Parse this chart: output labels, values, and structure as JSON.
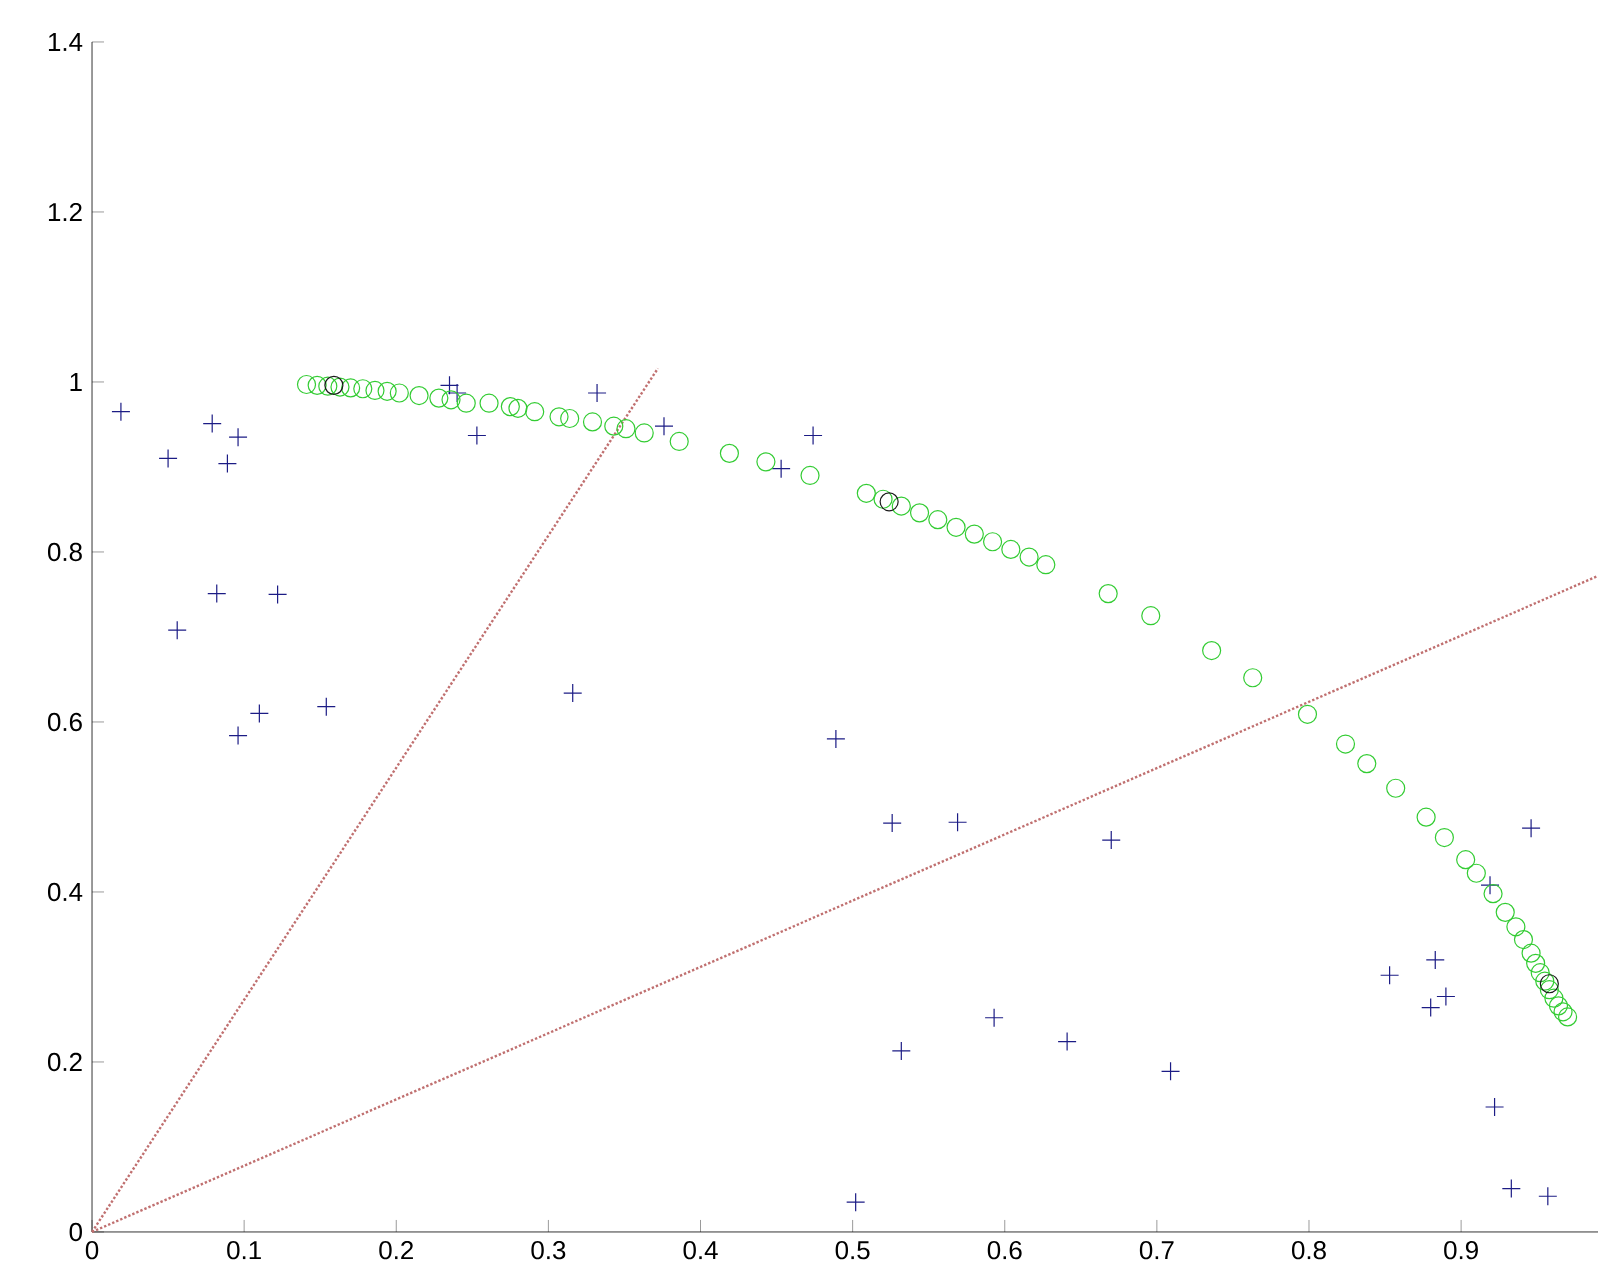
{
  "chart_data": {
    "type": "scatter",
    "xlim": [
      0,
      0.99
    ],
    "ylim": [
      0,
      1.4
    ],
    "xticks": [
      0,
      0.1,
      0.2,
      0.3,
      0.4,
      0.5,
      0.6,
      0.7,
      0.8,
      0.9
    ],
    "yticks": [
      0,
      0.2,
      0.4,
      0.6,
      0.8,
      1,
      1.2,
      1.4
    ],
    "series": [
      {
        "marker": "cross",
        "color": "#1c1c85",
        "x": [
          0.019,
          0.05,
          0.079,
          0.096,
          0.089,
          0.056,
          0.082,
          0.122,
          0.11,
          0.096,
          0.154,
          0.235,
          0.24,
          0.253,
          0.332,
          0.316,
          0.376,
          0.453,
          0.474,
          0.489,
          0.526,
          0.569,
          0.67,
          0.532,
          0.593,
          0.641,
          0.709,
          0.502,
          0.946,
          0.919,
          0.853,
          0.883,
          0.89,
          0.88,
          0.922,
          0.933,
          0.957
        ],
        "values": [
          0.965,
          0.91,
          0.951,
          0.935,
          0.904,
          0.708,
          0.751,
          0.75,
          0.61,
          0.584,
          0.618,
          0.996,
          0.987,
          0.937,
          0.987,
          0.634,
          0.948,
          0.898,
          0.937,
          0.58,
          0.481,
          0.482,
          0.461,
          0.213,
          0.252,
          0.224,
          0.189,
          0.035,
          0.475,
          0.408,
          0.302,
          0.32,
          0.277,
          0.264,
          0.147,
          0.051,
          0.042
        ]
      },
      {
        "marker": "circle",
        "color": "#33cc33",
        "x": [
          0.141,
          0.148,
          0.155,
          0.163,
          0.17,
          0.178,
          0.186,
          0.194,
          0.202,
          0.215,
          0.228,
          0.236,
          0.246,
          0.261,
          0.275,
          0.28,
          0.291,
          0.307,
          0.314,
          0.329,
          0.343,
          0.351,
          0.363,
          0.386,
          0.419,
          0.443,
          0.472,
          0.509,
          0.52,
          0.532,
          0.544,
          0.556,
          0.568,
          0.58,
          0.592,
          0.604,
          0.616,
          0.627,
          0.668,
          0.696,
          0.736,
          0.763,
          0.799,
          0.824,
          0.838,
          0.857,
          0.877,
          0.889,
          0.903,
          0.91,
          0.921,
          0.929,
          0.936,
          0.941,
          0.946,
          0.949,
          0.952,
          0.955,
          0.958,
          0.961,
          0.964,
          0.967,
          0.97
        ],
        "values": [
          0.997,
          0.996,
          0.995,
          0.994,
          0.993,
          0.992,
          0.99,
          0.989,
          0.987,
          0.984,
          0.981,
          0.979,
          0.975,
          0.975,
          0.971,
          0.969,
          0.965,
          0.959,
          0.957,
          0.953,
          0.948,
          0.945,
          0.94,
          0.93,
          0.916,
          0.906,
          0.89,
          0.869,
          0.862,
          0.854,
          0.846,
          0.838,
          0.829,
          0.821,
          0.812,
          0.803,
          0.794,
          0.785,
          0.751,
          0.725,
          0.684,
          0.652,
          0.609,
          0.574,
          0.551,
          0.522,
          0.488,
          0.464,
          0.438,
          0.422,
          0.398,
          0.376,
          0.359,
          0.344,
          0.328,
          0.316,
          0.305,
          0.295,
          0.285,
          0.275,
          0.266,
          0.259,
          0.253
        ]
      },
      {
        "marker": "circle",
        "color": "#1a1a1a",
        "x": [
          0.159,
          0.524,
          0.958
        ],
        "values": [
          0.996,
          0.859,
          0.292
        ]
      },
      {
        "type": "line",
        "marker": "none",
        "line_style": "dotted",
        "color": "#c07070",
        "x": [
          0,
          0.372
        ],
        "values": [
          0,
          1.016
        ]
      },
      {
        "type": "line",
        "marker": "none",
        "line_style": "dotted",
        "color": "#c07070",
        "x": [
          0,
          0.989
        ],
        "values": [
          0,
          0.771
        ]
      }
    ]
  }
}
